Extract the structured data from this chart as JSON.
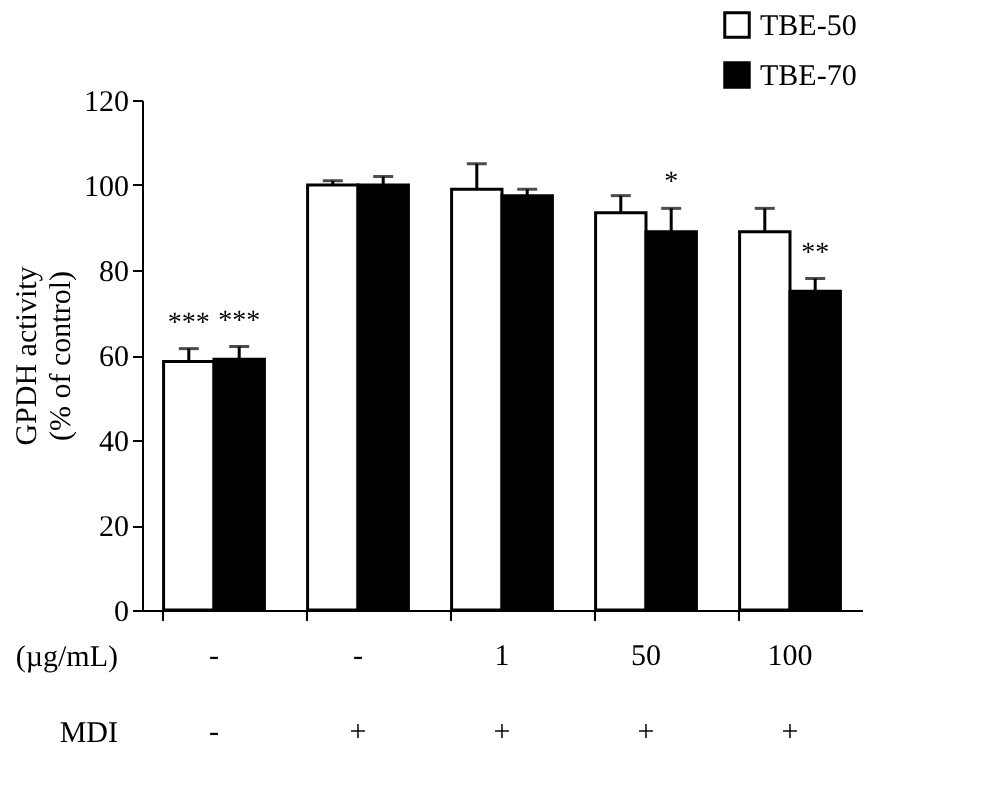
{
  "chart_data": {
    "type": "bar",
    "categories": [
      "-\n-",
      "-\n+",
      "1\n+",
      "50\n+",
      "100\n+"
    ],
    "ylabel": "GPDH activity\n(% of control)",
    "annotations": [
      "(µg/mL)",
      "MDI"
    ],
    "series": [
      {
        "name": "TBE-50",
        "color": "#ffffff",
        "values": [
          58.5,
          100,
          99,
          93.5,
          89
        ],
        "errors": [
          3,
          1,
          6,
          4,
          5.5
        ],
        "value_labels": [
          "***",
          null,
          null,
          null,
          null
        ]
      },
      {
        "name": "TBE-70",
        "color": "#000000",
        "values": [
          59,
          100,
          97.5,
          89,
          75
        ],
        "errors": [
          3,
          2,
          1.5,
          5.5,
          3
        ],
        "value_labels": [
          "***",
          null,
          null,
          "*",
          "**"
        ]
      }
    ],
    "ylim": [
      0,
      120
    ],
    "yticks": [
      0,
      20,
      40,
      60,
      80,
      100,
      120
    ],
    "grid": false,
    "legend": "top right"
  }
}
